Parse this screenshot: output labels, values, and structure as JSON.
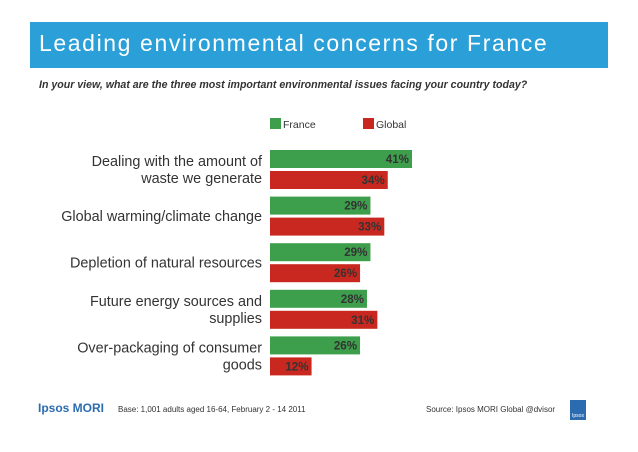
{
  "title": "Leading environmental concerns for France",
  "question": "In your view, what are the three most important environmental issues facing your country today?",
  "footer": {
    "logo_text": "Ipsos MORI",
    "base": "Base: 1,001 adults aged 16-64, February 2 - 14 2011",
    "source": "Source: Ipsos MORI Global @dvisor",
    "badge_text": "Ipsos"
  },
  "colors": {
    "title_bar": "#2a9fd8",
    "france": "#3d9e4b",
    "global": "#c8281f"
  },
  "chart_data": {
    "type": "bar",
    "orientation": "horizontal",
    "categories": [
      [
        "Dealing with the amount of",
        "waste we generate"
      ],
      [
        "Global warming/climate change"
      ],
      [
        "Depletion of natural resources"
      ],
      [
        "Future energy sources and",
        "supplies"
      ],
      [
        "Over-packaging of consumer",
        "goods"
      ]
    ],
    "series": [
      {
        "name": "France",
        "color": "#3d9e4b",
        "values": [
          41,
          29,
          29,
          28,
          26
        ],
        "labels": [
          "41%",
          "29%",
          "29%",
          "28%",
          "26%"
        ]
      },
      {
        "name": "Global",
        "color": "#c8281f",
        "values": [
          34,
          33,
          26,
          31,
          12
        ],
        "labels": [
          "34%",
          "33%",
          "26%",
          "31%",
          "12%"
        ]
      }
    ],
    "unit": "%",
    "xlim": [
      0,
      41
    ],
    "legend_position": "top",
    "grid": false
  }
}
